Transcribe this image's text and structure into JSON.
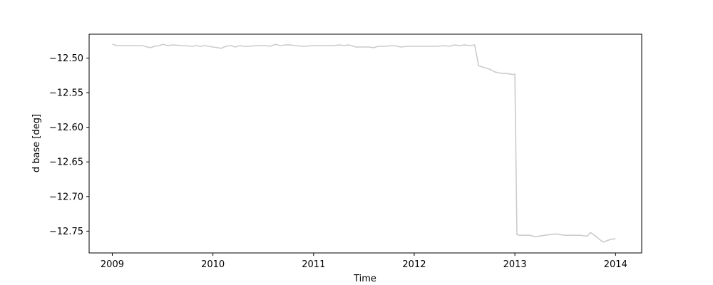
{
  "chart_data": {
    "type": "line",
    "title": "",
    "xlabel": "Time",
    "ylabel": "d base [deg]",
    "xlim": [
      2008.77,
      2014.26
    ],
    "ylim": [
      -12.7815,
      -12.4655
    ],
    "x_ticks": [
      2009,
      2010,
      2011,
      2012,
      2013,
      2014
    ],
    "x_tick_labels": [
      "2009",
      "2010",
      "2011",
      "2012",
      "2013",
      "2014"
    ],
    "y_ticks": [
      -12.5,
      -12.55,
      -12.6,
      -12.65,
      -12.7,
      -12.75
    ],
    "y_tick_labels": [
      "−12.50",
      "−12.55",
      "−12.60",
      "−12.65",
      "−12.70",
      "−12.75"
    ],
    "grid": false,
    "legend": "none",
    "series": [
      {
        "color": "#cccccc",
        "x": [
          2009.0,
          2009.05,
          2009.1,
          2009.2,
          2009.3,
          2009.35,
          2009.38,
          2009.42,
          2009.47,
          2009.5,
          2009.55,
          2009.6,
          2009.7,
          2009.8,
          2009.83,
          2009.88,
          2009.92,
          2009.96,
          2010.0,
          2010.05,
          2010.08,
          2010.13,
          2010.18,
          2010.22,
          2010.27,
          2010.3,
          2010.35,
          2010.45,
          2010.52,
          2010.57,
          2010.62,
          2010.67,
          2010.72,
          2010.77,
          2010.82,
          2010.9,
          2011.0,
          2011.06,
          2011.12,
          2011.2,
          2011.25,
          2011.3,
          2011.34,
          2011.38,
          2011.42,
          2011.5,
          2011.55,
          2011.6,
          2011.64,
          2011.7,
          2011.8,
          2011.87,
          2011.92,
          2012.0,
          2012.08,
          2012.15,
          2012.23,
          2012.29,
          2012.35,
          2012.4,
          2012.45,
          2012.5,
          2012.55,
          2012.6,
          2012.64,
          2012.7,
          2012.75,
          2012.8,
          2012.86,
          2012.9,
          2012.96,
          2012.98,
          2013.0,
          2013.02,
          2013.05,
          2013.1,
          2013.15,
          2013.2,
          2013.25,
          2013.3,
          2013.35,
          2013.4,
          2013.45,
          2013.5,
          2013.55,
          2013.6,
          2013.65,
          2013.7,
          2013.72,
          2013.75,
          2013.8,
          2013.85,
          2013.88,
          2013.91,
          2013.95,
          2014.0
        ],
        "y": [
          -12.48,
          -12.482,
          -12.482,
          -12.482,
          -12.482,
          -12.484,
          -12.485,
          -12.483,
          -12.482,
          -12.48,
          -12.482,
          -12.481,
          -12.482,
          -12.483,
          -12.482,
          -12.483,
          -12.482,
          -12.483,
          -12.484,
          -12.485,
          -12.486,
          -12.483,
          -12.482,
          -12.484,
          -12.482,
          -12.483,
          -12.483,
          -12.482,
          -12.482,
          -12.483,
          -12.48,
          -12.482,
          -12.481,
          -12.481,
          -12.482,
          -12.483,
          -12.482,
          -12.482,
          -12.482,
          -12.482,
          -12.481,
          -12.482,
          -12.481,
          -12.482,
          -12.484,
          -12.484,
          -12.484,
          -12.485,
          -12.483,
          -12.483,
          -12.482,
          -12.484,
          -12.483,
          -12.483,
          -12.483,
          -12.483,
          -12.483,
          -12.482,
          -12.483,
          -12.481,
          -12.482,
          -12.481,
          -12.482,
          -12.481,
          -12.511,
          -12.514,
          -12.516,
          -12.52,
          -12.522,
          -12.522,
          -12.523,
          -12.524,
          -12.523,
          -12.755,
          -12.756,
          -12.756,
          -12.756,
          -12.758,
          -12.757,
          -12.756,
          -12.755,
          -12.754,
          -12.755,
          -12.756,
          -12.756,
          -12.756,
          -12.756,
          -12.757,
          -12.757,
          -12.752,
          -12.757,
          -12.763,
          -12.766,
          -12.764,
          -12.762,
          -12.761
        ]
      }
    ]
  }
}
